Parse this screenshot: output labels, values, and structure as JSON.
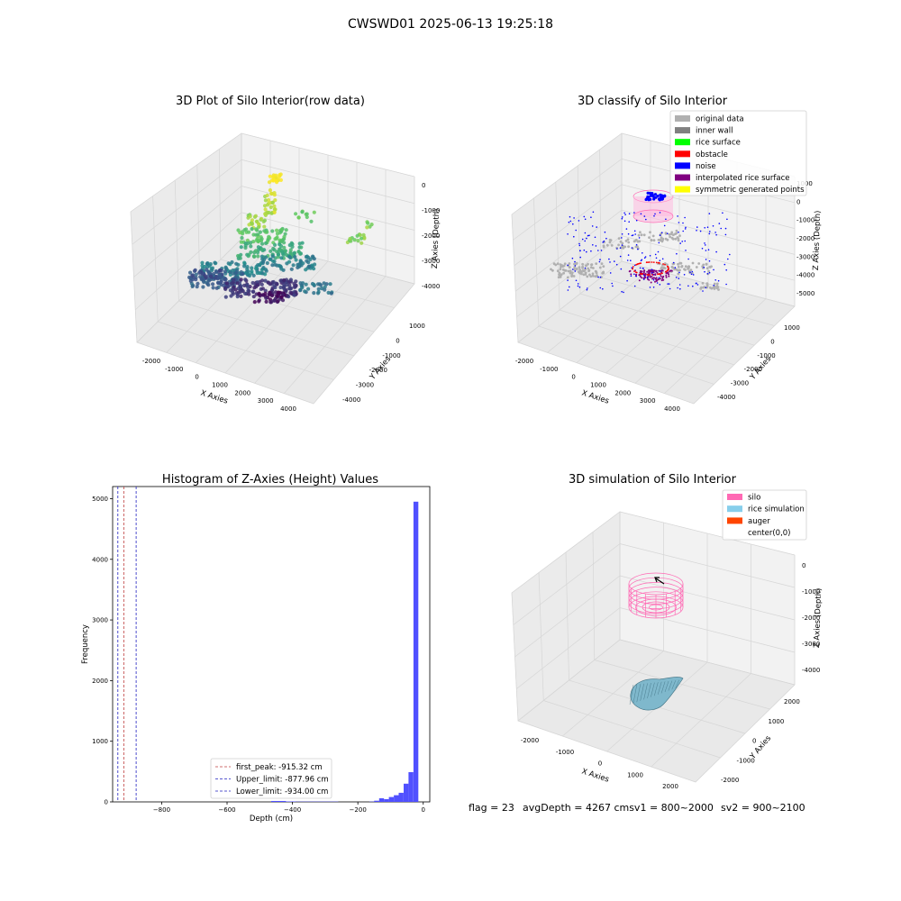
{
  "figure": {
    "title": "CWSWD01 2025-06-13 19:25:18",
    "status": {
      "flag": "flag = 23",
      "depth": "avgDepth = 4267 cmsv1 = 800~2000",
      "sv2": "sv2 = 900~2100"
    }
  },
  "colors": {
    "hist_bar": "#5050ff",
    "first_peak": "#c04040",
    "limit": "#2020c0",
    "pane": "#f2f2f2",
    "silo": "#ff69b4",
    "rice_sim": "#87ceeb",
    "auger": "#ff4500"
  },
  "chart_data": [
    {
      "type": "scatter",
      "title": "3D Plot of Silo Interior(row data)",
      "xlabel": "X Axies",
      "ylabel": "Y Axies",
      "zlabel": "Z Axies (Depth)",
      "x_ticks": [
        "-2000",
        "-1000",
        "0",
        "1000",
        "2000",
        "3000",
        "4000"
      ],
      "y_ticks": [
        "1000",
        "0",
        "-1000",
        "-2000",
        "-3000",
        "-4000"
      ],
      "z_ticks": [
        "0",
        "-1000",
        "-2000",
        "-3000",
        "-4000"
      ],
      "colormap": "viridis"
    },
    {
      "type": "scatter",
      "title": "3D classify of Silo Interior",
      "xlabel": "X Axies",
      "ylabel": "Y Axies",
      "zlabel": "Z Axies (Depth)",
      "x_ticks": [
        "-2000",
        "-1000",
        "0",
        "1000",
        "2000",
        "3000",
        "4000"
      ],
      "y_ticks": [
        "1000",
        "0",
        "-1000",
        "-2000",
        "-3000",
        "-4000"
      ],
      "z_ticks": [
        "1000",
        "0",
        "-1000",
        "-2000",
        "-3000",
        "-4000",
        "-5000"
      ],
      "legend": [
        {
          "label": "original data",
          "color": "#b0b0b0"
        },
        {
          "label": "inner wall",
          "color": "#808080"
        },
        {
          "label": "rice surface",
          "color": "#00ff00"
        },
        {
          "label": "obstacle",
          "color": "#ff0000"
        },
        {
          "label": "noise",
          "color": "#0000ff"
        },
        {
          "label": "interpolated rice surface",
          "color": "#800080"
        },
        {
          "label": "symmetric generated points",
          "color": "#ffff00"
        }
      ],
      "legend_position": "top-right"
    },
    {
      "type": "bar",
      "title": "Histogram of Z-Axies (Height) Values",
      "xlabel": "Depth (cm)",
      "ylabel": "Frequency",
      "xlim": [
        -950,
        20
      ],
      "ylim": [
        0,
        5200
      ],
      "x_ticks": [
        -800,
        -600,
        -400,
        -200,
        0
      ],
      "y_ticks": [
        0,
        1000,
        2000,
        3000,
        4000,
        5000
      ],
      "bin_width": 15,
      "bins": [
        {
          "x0": -465,
          "x1": -420,
          "value": 15
        },
        {
          "x0": -420,
          "x1": -390,
          "value": 8
        },
        {
          "x0": -390,
          "x1": -260,
          "value": 5
        },
        {
          "x0": -165,
          "x1": -150,
          "value": 5
        },
        {
          "x0": -150,
          "x1": -135,
          "value": 20
        },
        {
          "x0": -135,
          "x1": -120,
          "value": 60
        },
        {
          "x0": -120,
          "x1": -105,
          "value": 45
        },
        {
          "x0": -105,
          "x1": -90,
          "value": 80
        },
        {
          "x0": -90,
          "x1": -75,
          "value": 110
        },
        {
          "x0": -75,
          "x1": -60,
          "value": 150
        },
        {
          "x0": -60,
          "x1": -45,
          "value": 300
        },
        {
          "x0": -45,
          "x1": -30,
          "value": 490
        },
        {
          "x0": -30,
          "x1": -15,
          "value": 4950
        }
      ],
      "lines": [
        {
          "name": "first_peak: -915.32 cm",
          "x": -915.32,
          "color": "#c04040"
        },
        {
          "name": "Upper_limit: -877.96 cm",
          "x": -877.96,
          "color": "#2020c0"
        },
        {
          "name": "Lower_limit: -934.00 cm",
          "x": -934.0,
          "color": "#2020c0"
        }
      ],
      "legend_position": "lower-center"
    },
    {
      "type": "scatter",
      "title": "3D simulation of Silo Interior",
      "xlabel": "X Axies",
      "ylabel": "Y Axies",
      "zlabel": "Z Axies (Depth)",
      "x_ticks": [
        "-2000",
        "-1000",
        "0",
        "1000",
        "2000"
      ],
      "y_ticks": [
        "2000",
        "1000",
        "0",
        "-1000",
        "-2000"
      ],
      "z_ticks": [
        "0",
        "-1000",
        "-2000",
        "-3000",
        "-4000"
      ],
      "legend": [
        {
          "label": "silo",
          "color": "#ff69b4"
        },
        {
          "label": "rice simulation",
          "color": "#87ceeb"
        },
        {
          "label": "auger",
          "color": "#ff4500"
        },
        {
          "label": "center(0,0)",
          "color": "#ffffff"
        }
      ],
      "legend_position": "top-right"
    }
  ]
}
